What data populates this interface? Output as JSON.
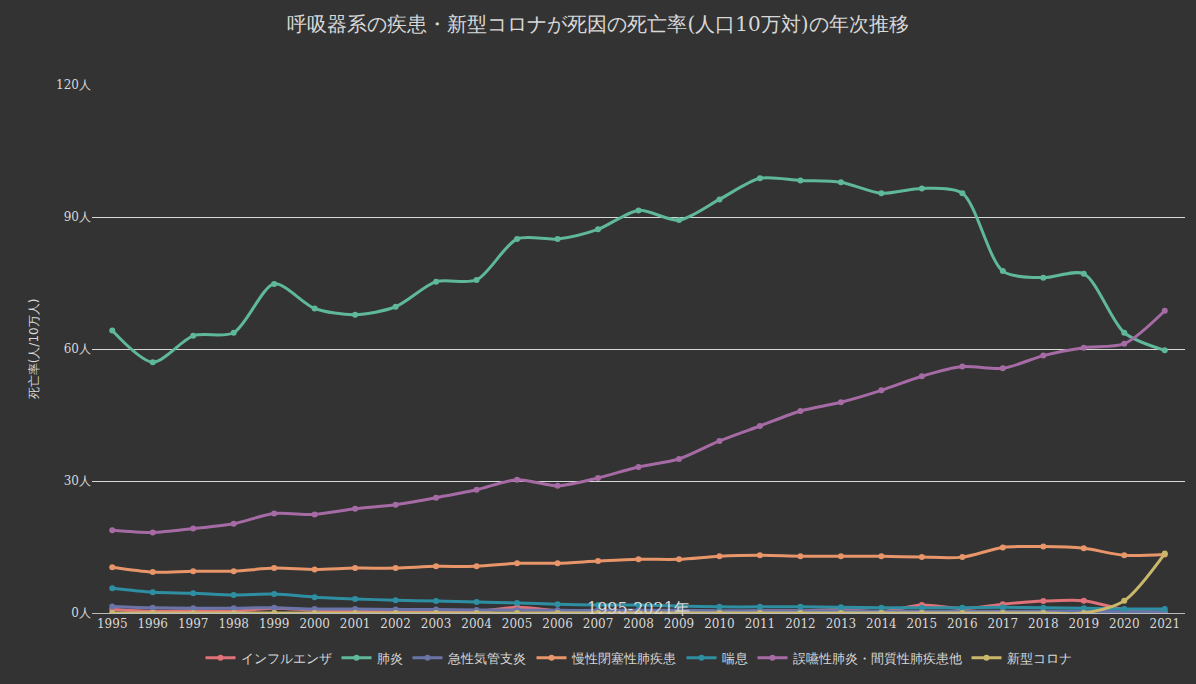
{
  "chart_data": {
    "type": "line",
    "title": "呼吸器系の疾患・新型コロナが死因の死亡率(人口10万対)の年次推移",
    "subtitle": "1995-2021年",
    "y_label": "死亡率(人/10万人)",
    "x": [
      1995,
      1996,
      1997,
      1998,
      1999,
      2000,
      2001,
      2002,
      2003,
      2004,
      2005,
      2006,
      2007,
      2008,
      2009,
      2010,
      2011,
      2012,
      2013,
      2014,
      2015,
      2016,
      2017,
      2018,
      2019,
      2020,
      2021
    ],
    "xlim": [
      1994.5,
      2021.5
    ],
    "xticks": [
      1995,
      1996,
      1997,
      1998,
      1999,
      2000,
      2001,
      2002,
      2003,
      2004,
      2005,
      2006,
      2007,
      2008,
      2009,
      2010,
      2011,
      2012,
      2013,
      2014,
      2015,
      2016,
      2017,
      2018,
      2019,
      2020,
      2021
    ],
    "ylim": [
      0,
      120
    ],
    "yticks": [
      {
        "value": 0,
        "label": "0人"
      },
      {
        "value": 30,
        "label": "30人"
      },
      {
        "value": 60,
        "label": "60人"
      },
      {
        "value": 90,
        "label": "90人"
      },
      {
        "value": 120,
        "label": "120人"
      }
    ],
    "grid": true,
    "legend": "bottom",
    "marker": "circle",
    "line_style": "spline",
    "series": [
      {
        "name": "インフルエンザ",
        "color": "#e0737a",
        "values": [
          0.8,
          0.4,
          0.5,
          0.4,
          1.1,
          0.6,
          0.5,
          0.4,
          0.5,
          0.3,
          1.3,
          0.5,
          0.3,
          0.3,
          0.3,
          0.1,
          0.5,
          0.5,
          0.8,
          0.3,
          1.8,
          1.0,
          2.0,
          2.7,
          2.8,
          0.8,
          0.0
        ]
      },
      {
        "name": "肺炎",
        "color": "#5fb89a",
        "values": [
          64.2,
          57.0,
          63.0,
          63.7,
          74.8,
          69.2,
          67.8,
          69.6,
          75.3,
          75.7,
          85.0,
          85.0,
          87.2,
          91.5,
          89.3,
          94.0,
          98.8,
          98.3,
          97.9,
          95.4,
          96.5,
          95.4,
          77.7,
          76.2,
          77.1,
          63.7,
          59.7
        ]
      },
      {
        "name": "急性気管支炎",
        "color": "#6b74a8",
        "values": [
          1.5,
          1.2,
          1.1,
          1.1,
          1.2,
          0.9,
          0.9,
          0.8,
          0.8,
          0.7,
          0.7,
          0.6,
          0.6,
          0.6,
          0.6,
          0.5,
          0.5,
          0.5,
          0.5,
          0.4,
          0.4,
          0.4,
          0.4,
          0.4,
          0.4,
          0.3,
          0.3
        ]
      },
      {
        "name": "慢性閉塞性肺疾患",
        "color": "#e8956a",
        "values": [
          10.4,
          9.3,
          9.5,
          9.5,
          10.2,
          9.9,
          10.2,
          10.2,
          10.6,
          10.6,
          11.3,
          11.3,
          11.8,
          12.2,
          12.2,
          12.9,
          13.1,
          12.9,
          12.9,
          12.9,
          12.7,
          12.7,
          14.9,
          15.1,
          14.7,
          13.1,
          13.3
        ]
      },
      {
        "name": "喘息",
        "color": "#2e8fa3",
        "values": [
          5.6,
          4.7,
          4.5,
          4.1,
          4.3,
          3.6,
          3.2,
          2.9,
          2.7,
          2.5,
          2.3,
          2.0,
          1.8,
          1.8,
          1.6,
          1.4,
          1.4,
          1.4,
          1.3,
          1.2,
          1.2,
          1.2,
          1.3,
          1.2,
          1.1,
          0.9,
          0.9
        ]
      },
      {
        "name": "誤嚥性肺炎・間質性肺疾患他",
        "color": "#a66ba5",
        "values": [
          18.8,
          18.3,
          19.2,
          20.3,
          22.6,
          22.4,
          23.7,
          24.6,
          26.2,
          28.0,
          30.3,
          28.9,
          30.7,
          33.2,
          35.0,
          39.1,
          42.5,
          45.9,
          47.9,
          50.6,
          53.8,
          56.0,
          55.6,
          58.5,
          60.3,
          61.2,
          68.7
        ]
      },
      {
        "name": "新型コロナ",
        "color": "#c9b86a",
        "values": [
          0,
          0,
          0,
          0,
          0,
          0,
          0,
          0,
          0,
          0,
          0,
          0,
          0,
          0,
          0,
          0,
          0,
          0,
          0,
          0,
          0,
          0,
          0,
          0,
          0,
          2.8,
          13.5
        ]
      }
    ]
  }
}
